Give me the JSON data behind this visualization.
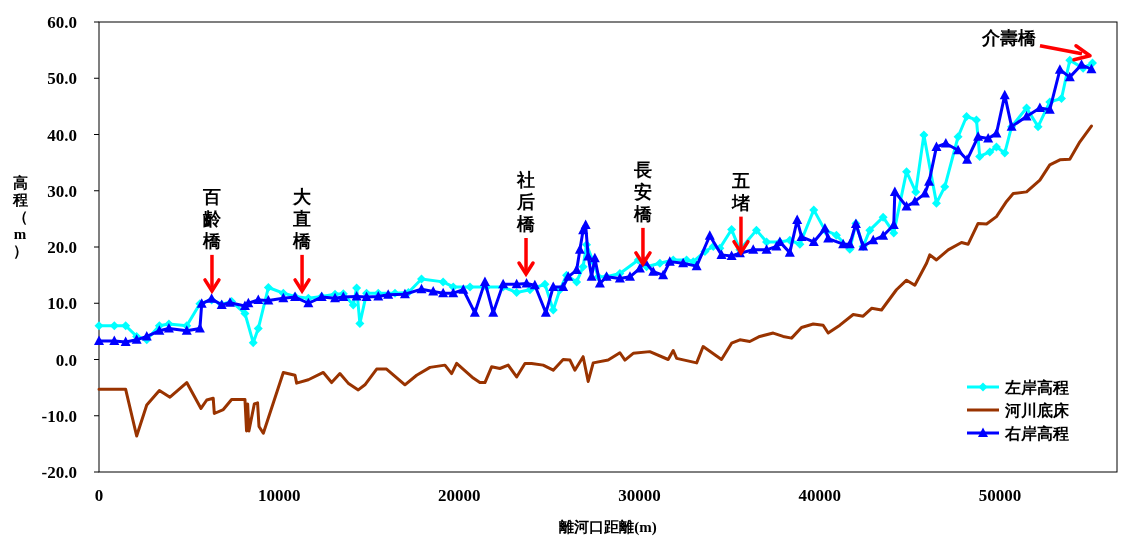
{
  "chart_data": {
    "type": "line",
    "xlabel": "離河口距離(m)",
    "ylabel": "高程（m）",
    "xlim": [
      0,
      56500
    ],
    "ylim": [
      -20,
      60
    ],
    "xticks": [
      0,
      10000,
      20000,
      30000,
      40000,
      50000
    ],
    "yticks": [
      {
        "value": -20,
        "label": "-20.0"
      },
      {
        "value": -10,
        "label": "-10.0"
      },
      {
        "value": 0,
        "label": "0.0"
      },
      {
        "value": 10,
        "label": "10.0"
      },
      {
        "value": 20,
        "label": "20.0"
      },
      {
        "value": 30,
        "label": "30.0"
      },
      {
        "value": 40,
        "label": "40.0"
      },
      {
        "value": 50,
        "label": "50.0"
      },
      {
        "value": 60,
        "label": "60.0"
      }
    ],
    "grid": false,
    "legend": "bottom right",
    "line_style": "solid",
    "series": [
      {
        "name": "左岸高程",
        "color": "#00ffff",
        "marker": "diamond",
        "x": [
          0,
          850,
          1480,
          2090,
          2650,
          3350,
          3880,
          4870,
          5600,
          6250,
          6810,
          7360,
          8100,
          8560,
          8840,
          9400,
          10230,
          10880,
          11620,
          12360,
          13100,
          13560,
          14110,
          14300,
          14480,
          14850,
          15500,
          16430,
          17170,
          17900,
          19100,
          19660,
          20590,
          21510,
          22430,
          23180,
          23920,
          24750,
          25210,
          25580,
          25950,
          26510,
          26870,
          27060,
          27430,
          27710,
          28170,
          28910,
          29930,
          30390,
          31130,
          31870,
          32610,
          32980,
          33630,
          34090,
          34460,
          35110,
          35570,
          36490,
          37050,
          37790,
          38340,
          38900,
          39670,
          40290,
          40930,
          41670,
          42010,
          42410,
          42780,
          43520,
          44110,
          44820,
          45330,
          45780,
          46480,
          46940,
          47680,
          48150,
          48700,
          48880,
          49440,
          49810,
          50270,
          50650,
          51480,
          52120,
          52770,
          53420,
          53880,
          54620,
          55140
        ],
        "values": [
          6.0,
          6.0,
          6.0,
          4.1,
          3.5,
          6.0,
          6.3,
          6.0,
          9.9,
          10.6,
          9.8,
          10.3,
          8.2,
          3.0,
          5.5,
          12.8,
          11.8,
          11.2,
          10.9,
          11.2,
          11.6,
          11.7,
          9.7,
          12.7,
          6.4,
          11.8,
          11.8,
          11.8,
          11.9,
          14.3,
          13.8,
          12.9,
          12.9,
          12.9,
          12.9,
          11.9,
          12.4,
          13.4,
          8.8,
          12.4,
          15.0,
          13.8,
          16.5,
          20.4,
          17.4,
          14.7,
          14.7,
          15.3,
          17.7,
          16.5,
          17.1,
          17.7,
          17.7,
          17.4,
          19.2,
          20.1,
          19.8,
          23.1,
          19.5,
          23.0,
          20.9,
          20.9,
          21.2,
          20.5,
          26.6,
          23.0,
          22.1,
          19.6,
          24.2,
          20.1,
          23.0,
          25.3,
          22.5,
          33.4,
          29.8,
          39.9,
          27.8,
          30.7,
          39.6,
          43.2,
          42.6,
          36.1,
          36.9,
          37.8,
          36.7,
          41.4,
          44.7,
          41.4,
          45.8,
          46.4,
          53.2,
          51.8,
          52.7
        ]
      },
      {
        "name": "河川底床",
        "color": "#993300",
        "marker": "none",
        "x": [
          0,
          1480,
          2090,
          2650,
          3350,
          3940,
          4870,
          5660,
          5980,
          6340,
          6400,
          6900,
          7360,
          8100,
          8190,
          8250,
          8320,
          8620,
          8800,
          8880,
          9120,
          10230,
          10880,
          10970,
          11620,
          12450,
          12910,
          13370,
          13830,
          14390,
          14760,
          15410,
          15960,
          16980,
          17630,
          18370,
          19200,
          19570,
          19850,
          20770,
          21140,
          21420,
          21790,
          22250,
          22710,
          23180,
          23640,
          24010,
          24650,
          25210,
          25760,
          26140,
          26410,
          26870,
          27150,
          27430,
          28260,
          28910,
          29190,
          29650,
          30570,
          31590,
          31870,
          32060,
          33170,
          33530,
          34550,
          35110,
          35570,
          36120,
          36670,
          37420,
          37970,
          38440,
          38990,
          39640,
          40190,
          40470,
          41120,
          41860,
          42410,
          42880,
          43430,
          44260,
          44820,
          45280,
          45930,
          46110,
          46480,
          47130,
          47870,
          48240,
          48790,
          49260,
          49810,
          50370,
          50740,
          51480,
          52220,
          52770,
          53330,
          53880,
          54440,
          55080
        ],
        "values": [
          -5.3,
          -5.3,
          -13.6,
          -8.1,
          -5.5,
          -6.7,
          -4.1,
          -8.7,
          -7.2,
          -6.9,
          -9.6,
          -8.9,
          -7.1,
          -7.1,
          -12.7,
          -7.9,
          -12.7,
          -7.9,
          -7.7,
          -11.9,
          -13.1,
          -2.3,
          -2.8,
          -4.2,
          -3.6,
          -2.3,
          -4.1,
          -2.5,
          -4.2,
          -5.4,
          -4.5,
          -1.7,
          -1.7,
          -4.5,
          -2.8,
          -1.4,
          -1.0,
          -2.5,
          -0.7,
          -3.3,
          -4.1,
          -4.1,
          -1.3,
          -1.6,
          -1.0,
          -3.1,
          -0.7,
          -0.7,
          -1.0,
          -1.9,
          0.0,
          -0.1,
          -1.9,
          0.5,
          -3.9,
          -0.6,
          -0.1,
          1.2,
          -0.1,
          1.1,
          1.4,
          0.0,
          1.6,
          0.2,
          -0.6,
          2.3,
          0.0,
          2.9,
          3.5,
          3.2,
          4.1,
          4.7,
          4.1,
          3.8,
          5.7,
          6.3,
          6.1,
          4.7,
          6.1,
          8.0,
          7.7,
          9.1,
          8.8,
          12.4,
          14.1,
          13.2,
          17.1,
          18.6,
          17.7,
          19.5,
          20.8,
          20.5,
          24.2,
          24.1,
          25.4,
          28.1,
          29.5,
          29.8,
          31.9,
          34.6,
          35.5,
          35.6,
          38.7,
          41.5
        ]
      },
      {
        "name": "右岸高程",
        "color": "#0000ff",
        "marker": "triangle",
        "x": [
          0,
          850,
          1480,
          2090,
          2650,
          3350,
          3880,
          4870,
          5600,
          5700,
          6250,
          6810,
          7270,
          8100,
          8290,
          8840,
          9400,
          10230,
          10880,
          11620,
          12360,
          13100,
          13560,
          14300,
          14850,
          15500,
          16050,
          16980,
          17900,
          18550,
          19100,
          19660,
          20220,
          20860,
          21420,
          21880,
          22430,
          23180,
          23730,
          24190,
          24800,
          25210,
          25760,
          26040,
          26510,
          26690,
          26870,
          27010,
          27150,
          27340,
          27520,
          27800,
          28170,
          28910,
          29470,
          30020,
          30300,
          30760,
          31310,
          31680,
          32420,
          33170,
          33900,
          34550,
          35110,
          35570,
          36310,
          37050,
          37600,
          37790,
          38340,
          38750,
          38990,
          39670,
          40290,
          40470,
          41300,
          41670,
          42010,
          42410,
          42970,
          43520,
          44110,
          44170,
          44820,
          45280,
          45840,
          46070,
          46480,
          47000,
          47680,
          48180,
          48790,
          49350,
          49810,
          50270,
          50650,
          51480,
          52220,
          52770,
          53330,
          53880,
          54530,
          55080
        ],
        "values": [
          3.3,
          3.3,
          3.1,
          3.5,
          4.1,
          5.1,
          5.5,
          5.1,
          5.5,
          9.9,
          10.8,
          9.7,
          10.1,
          9.5,
          10.0,
          10.6,
          10.5,
          10.9,
          11.1,
          10.0,
          11.1,
          10.9,
          11.1,
          11.2,
          11.1,
          11.2,
          11.5,
          11.6,
          12.5,
          12.1,
          11.8,
          11.8,
          12.4,
          8.3,
          13.8,
          8.3,
          13.4,
          13.4,
          13.5,
          13.2,
          8.3,
          12.9,
          12.9,
          14.7,
          15.9,
          19.5,
          23.0,
          23.9,
          18.3,
          14.7,
          18.0,
          13.5,
          14.7,
          14.4,
          14.7,
          16.2,
          17.4,
          15.6,
          15.0,
          17.4,
          17.1,
          16.6,
          22.0,
          18.6,
          18.4,
          18.9,
          19.5,
          19.5,
          20.1,
          20.9,
          19.0,
          24.8,
          21.8,
          20.9,
          23.3,
          21.5,
          20.5,
          20.5,
          24.1,
          20.1,
          21.2,
          22.0,
          23.9,
          29.8,
          27.2,
          28.1,
          29.5,
          31.6,
          37.8,
          38.4,
          37.2,
          35.5,
          39.6,
          39.3,
          40.2,
          47.0,
          41.4,
          43.2,
          44.7,
          44.4,
          51.5,
          50.2,
          52.4,
          51.6
        ]
      }
    ],
    "annotations": [
      {
        "text": "百齡橋",
        "x": 6270,
        "y": 12.2
      },
      {
        "text": "大直橋",
        "x": 11270,
        "y": 12.2
      },
      {
        "text": "社后橋",
        "x": 23700,
        "y": 15.2
      },
      {
        "text": "長安橋",
        "x": 30190,
        "y": 17.0
      },
      {
        "text": "五堵",
        "x": 35630,
        "y": 19.0
      },
      {
        "text": "介壽橋",
        "x": 55000,
        "y": 54
      }
    ]
  }
}
